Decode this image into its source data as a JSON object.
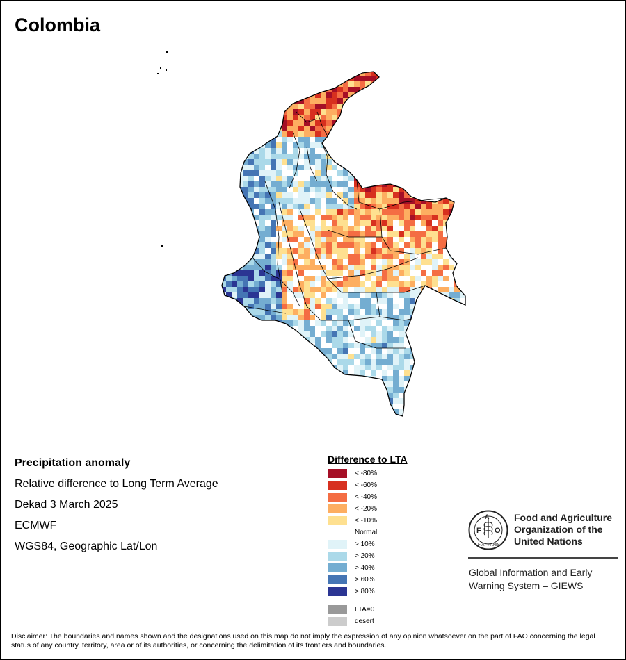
{
  "title": "Colombia",
  "info": {
    "heading": "Precipitation anomaly",
    "line1": "Relative difference to Long Term Average",
    "line2": "Dekad 3 March 2025",
    "line3": "ECMWF",
    "line4": "WGS84, Geographic Lat/Lon"
  },
  "legend": {
    "title": "Difference to LTA",
    "items": [
      {
        "label": "< -80%",
        "color": "#a50f26"
      },
      {
        "label": "< -60%",
        "color": "#d7301f"
      },
      {
        "label": "< -40%",
        "color": "#f46d43"
      },
      {
        "label": "< -20%",
        "color": "#fdae61"
      },
      {
        "label": "< -10%",
        "color": "#fee090"
      },
      {
        "label": "Normal",
        "color": "#ffffff"
      },
      {
        "label": "> 10%",
        "color": "#e0f3f8"
      },
      {
        "label": "> 20%",
        "color": "#abd9e9"
      },
      {
        "label": "> 40%",
        "color": "#74add1"
      },
      {
        "label": "> 60%",
        "color": "#4575b4"
      },
      {
        "label": "> 80%",
        "color": "#2b3593"
      }
    ],
    "extra": [
      {
        "label": "LTA=0",
        "color": "#999999"
      },
      {
        "label": "desert",
        "color": "#cccccc"
      }
    ]
  },
  "org": {
    "name_line1": "Food and Agriculture",
    "name_line2": "Organization of the",
    "name_line3": "United Nations",
    "system_line1": "Global Information and Early",
    "system_line2": "Warning System – GIEWS",
    "logo_letters": "FAO",
    "logo_motto": "FIAT PANIS"
  },
  "disclaimer": "Disclaimer: The boundaries and names shown and the designations used on this map do not imply the expression of any opinion whatsoever on the part of FAO concerning the legal status of any country, territory, area or of its authorities, or concerning the delimitation of its frontiers and boundaries."
}
